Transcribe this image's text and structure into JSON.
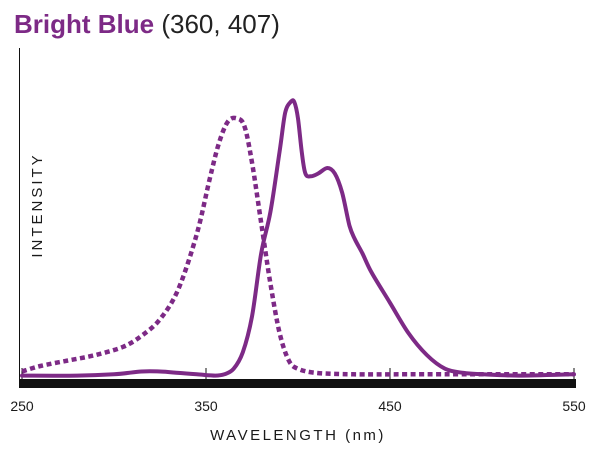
{
  "chart_data": {
    "type": "line",
    "title": "Bright Blue",
    "subtitle": "(360, 407)",
    "xlabel": "WAVELENGTH (nm)",
    "ylabel": "INTENSITY",
    "xlim": [
      250,
      550
    ],
    "ylim": [
      0,
      100
    ],
    "xticks": [
      250,
      350,
      450,
      550
    ],
    "grid": false,
    "legend": "none",
    "colors": {
      "title": "#7d2a86",
      "series": "#7d2a86",
      "axis": "#111111"
    },
    "series": [
      {
        "style": "dotted",
        "x": [
          250,
          260,
          275,
          290,
          305,
          315,
          325,
          335,
          345,
          352,
          357,
          362,
          367,
          371,
          375,
          380,
          385,
          390,
          395,
          400,
          410,
          430,
          460,
          500,
          550
        ],
        "y": [
          2,
          4,
          6,
          8,
          11,
          15,
          21,
          32,
          52,
          72,
          85,
          93,
          94,
          91,
          78,
          56,
          34,
          16,
          6,
          3,
          1.5,
          1,
          1,
          1,
          1
        ]
      },
      {
        "style": "solid",
        "x": [
          250,
          280,
          300,
          315,
          325,
          335,
          345,
          355,
          360,
          365,
          370,
          375,
          380,
          385,
          390,
          393,
          396,
          398,
          400,
          402,
          404,
          407,
          411,
          416,
          420,
          424,
          428,
          431,
          435,
          440,
          450,
          460,
          470,
          480,
          490,
          500,
          520,
          550
        ],
        "y": [
          0.5,
          0.5,
          1,
          2,
          2,
          1.5,
          1,
          0.5,
          1,
          3,
          9,
          22,
          45,
          60,
          82,
          96,
          100,
          100,
          94,
          82,
          74,
          73,
          74,
          76,
          74,
          67,
          55,
          50,
          45,
          38,
          27,
          16,
          8,
          3,
          1.5,
          1,
          0.5,
          1
        ]
      }
    ]
  }
}
